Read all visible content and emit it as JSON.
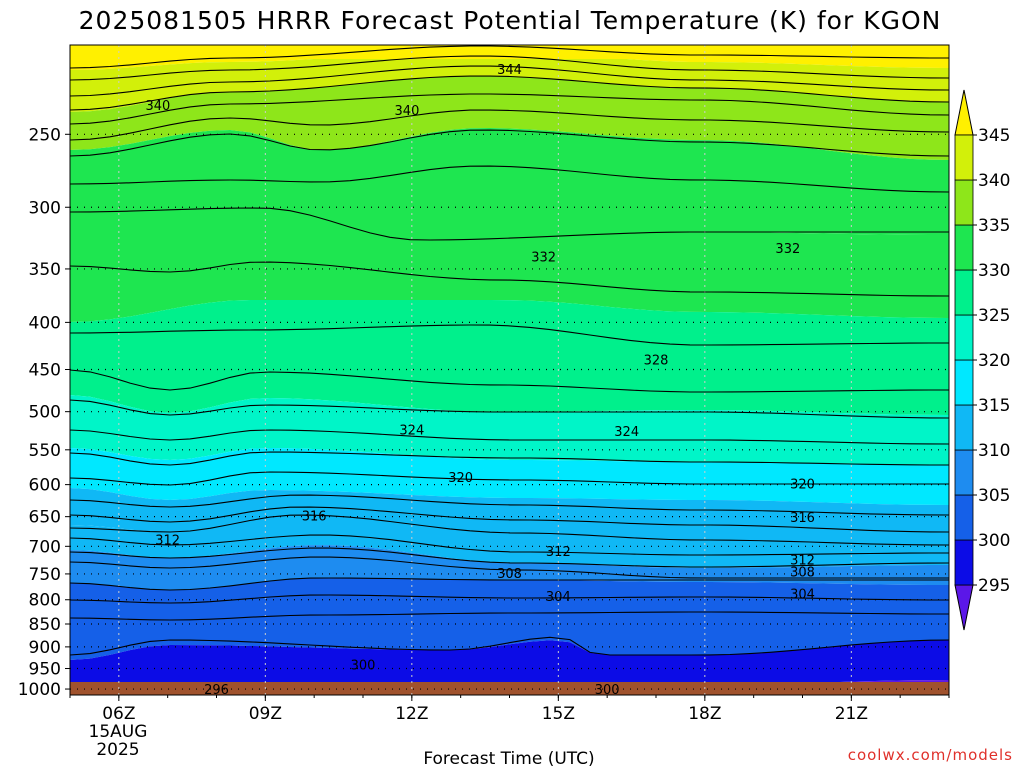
{
  "chart_data": {
    "type": "contour",
    "title": "2025081505 HRRR Forecast Potential Temperature (K) for KGON",
    "xlabel": "Forecast Time (UTC)",
    "ylabel": "",
    "x_ticks": [
      "06Z",
      "09Z",
      "12Z",
      "15Z",
      "18Z",
      "21Z"
    ],
    "x_date_label": [
      "15AUG",
      "2025"
    ],
    "x_hours": [
      5,
      23
    ],
    "y_ticks": [
      250,
      300,
      350,
      400,
      450,
      500,
      550,
      600,
      650,
      700,
      750,
      800,
      850,
      900,
      950,
      1000
    ],
    "y_range_hpa": [
      200,
      1015
    ],
    "y_scale": "log",
    "colorbar": {
      "ticks": [
        295,
        300,
        305,
        310,
        315,
        320,
        325,
        330,
        335,
        340,
        345
      ],
      "bands": [
        {
          "lo": 290,
          "hi": 295,
          "color": "#5b17e8"
        },
        {
          "lo": 295,
          "hi": 300,
          "color": "#0c0ce6"
        },
        {
          "lo": 300,
          "hi": 305,
          "color": "#1560e8"
        },
        {
          "lo": 305,
          "hi": 310,
          "color": "#1e8cf0"
        },
        {
          "lo": 310,
          "hi": 315,
          "color": "#10b8f5"
        },
        {
          "lo": 315,
          "hi": 320,
          "color": "#00e8ff"
        },
        {
          "lo": 320,
          "hi": 325,
          "color": "#00f5c8"
        },
        {
          "lo": 325,
          "hi": 330,
          "color": "#00f08c"
        },
        {
          "lo": 330,
          "hi": 335,
          "color": "#1ee650"
        },
        {
          "lo": 335,
          "hi": 340,
          "color": "#8ee61a"
        },
        {
          "lo": 340,
          "hi": 345,
          "color": "#d2f00a"
        },
        {
          "lo": 345,
          "hi": 350,
          "color": "#fff000"
        }
      ]
    },
    "contour_labels": [
      {
        "text": "344",
        "hour": 14.0,
        "p": 213
      },
      {
        "text": "340",
        "hour": 6.8,
        "p": 233
      },
      {
        "text": "340",
        "hour": 11.9,
        "p": 236
      },
      {
        "text": "332",
        "hour": 14.7,
        "p": 340
      },
      {
        "text": "332",
        "hour": 19.7,
        "p": 333
      },
      {
        "text": "328",
        "hour": 17.0,
        "p": 440
      },
      {
        "text": "324",
        "hour": 12.0,
        "p": 524
      },
      {
        "text": "324",
        "hour": 16.4,
        "p": 526
      },
      {
        "text": "320",
        "hour": 13.0,
        "p": 590
      },
      {
        "text": "320",
        "hour": 20.0,
        "p": 600
      },
      {
        "text": "316",
        "hour": 10.0,
        "p": 650
      },
      {
        "text": "316",
        "hour": 20.0,
        "p": 652
      },
      {
        "text": "312",
        "hour": 7.0,
        "p": 690
      },
      {
        "text": "312",
        "hour": 15.0,
        "p": 710
      },
      {
        "text": "312",
        "hour": 20.0,
        "p": 725
      },
      {
        "text": "308",
        "hour": 14.0,
        "p": 750
      },
      {
        "text": "308",
        "hour": 20.0,
        "p": 747
      },
      {
        "text": "304",
        "hour": 15.0,
        "p": 795
      },
      {
        "text": "304",
        "hour": 20.0,
        "p": 790
      },
      {
        "text": "300",
        "hour": 11.0,
        "p": 943
      },
      {
        "text": "296",
        "hour": 8.0,
        "p": 1003
      },
      {
        "text": "300",
        "hour": 16.0,
        "p": 1003
      }
    ]
  },
  "credit": "coolwx.com/models"
}
